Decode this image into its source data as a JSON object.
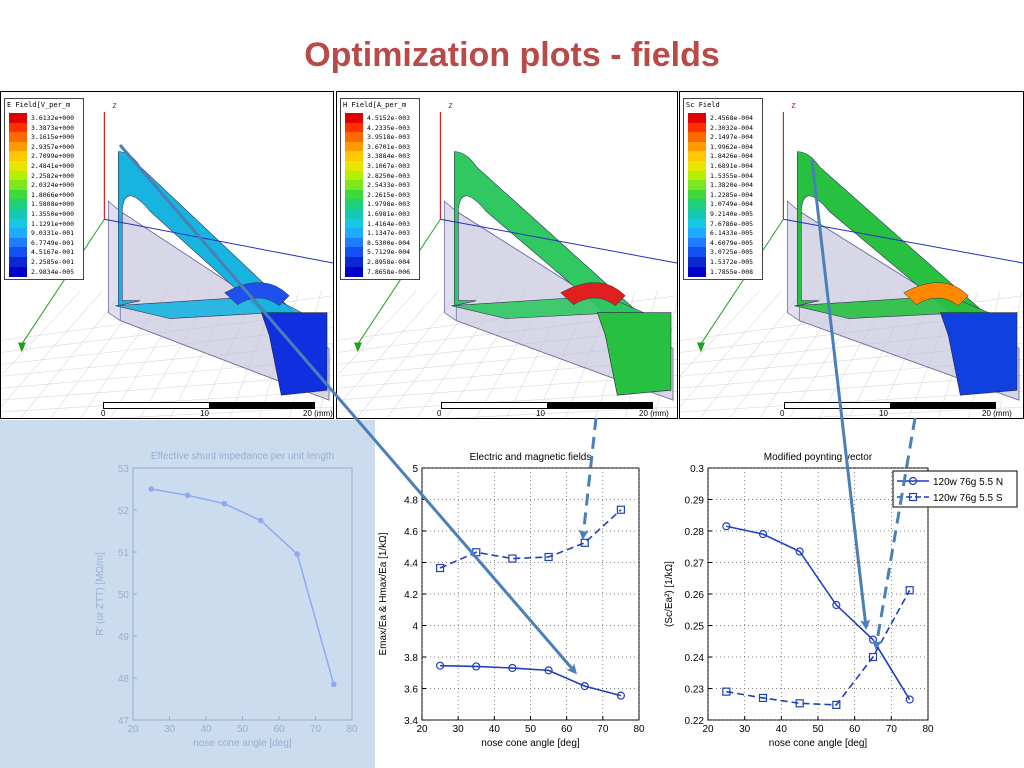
{
  "slide": {
    "title": "Optimization plots - fields"
  },
  "sim_panels": [
    {
      "name": "e-field",
      "legend_title": "E Field[V_per_m",
      "values": [
        "3.6132e+000",
        "3.3873e+000",
        "3.1615e+000",
        "2.9357e+000",
        "2.7099e+000",
        "2.4841e+000",
        "2.2582e+000",
        "2.0324e+000",
        "1.8066e+000",
        "1.5808e+000",
        "1.3550e+000",
        "1.1291e+000",
        "9.0331e-001",
        "6.7749e-001",
        "4.5167e-001",
        "2.2585e-001",
        "2.9834e-005"
      ],
      "axis_label": "z",
      "scale_labels": [
        "0",
        "10",
        "20 (mm)"
      ]
    },
    {
      "name": "h-field",
      "legend_title": "H Field[A_per_m",
      "values": [
        "4.5152e-003",
        "4.2335e-003",
        "3.9518e-003",
        "3.6701e-003",
        "3.3884e-003",
        "3.1067e-003",
        "2.8250e-003",
        "2.5433e-003",
        "2.2615e-003",
        "1.9798e-003",
        "1.6981e-003",
        "1.4164e-003",
        "1.1347e-003",
        "8.5300e-004",
        "5.7129e-004",
        "2.8958e-004",
        "7.8658e-006"
      ],
      "axis_label": "z",
      "scale_labels": [
        "0",
        "10",
        "20 (mm)"
      ]
    },
    {
      "name": "sc-field",
      "legend_title": "Sc Field",
      "values": [
        "2.4568e-004",
        "2.3032e-004",
        "2.1497e-004",
        "1.9962e-004",
        "1.8426e-004",
        "1.6891e-004",
        "1.5355e-004",
        "1.3820e-004",
        "1.2285e-004",
        "1.0749e-004",
        "9.2140e-005",
        "7.6786e-005",
        "6.1433e-005",
        "4.6079e-005",
        "3.0725e-005",
        "1.5372e-005",
        "1.7855e-008"
      ],
      "axis_label": "z",
      "scale_labels": [
        "0",
        "10",
        "20 (mm)"
      ]
    }
  ],
  "colors": {
    "title": "#b94a48",
    "series": "#1f3fbf",
    "arrow": "#4a7fb8",
    "shunt_line": "#8fa9f0",
    "shunt_bg": "#cbdcef"
  },
  "chart_data": [
    {
      "type": "line",
      "title": "Effective shunt impedance per unit length",
      "xlabel": "nose cone angle [deg]",
      "ylabel": "R' (or ZTT) [MΩ/m]",
      "xlim": [
        20,
        80
      ],
      "ylim": [
        47,
        53
      ],
      "xticks": [
        "20",
        "30",
        "40",
        "50",
        "60",
        "70",
        "80"
      ],
      "yticks": [
        "47",
        "48",
        "49",
        "50",
        "51",
        "52",
        "53"
      ],
      "grid": false,
      "x": [
        25,
        35,
        45,
        55,
        65,
        75
      ],
      "series": [
        {
          "values": [
            52.5,
            52.35,
            52.15,
            51.75,
            50.95,
            47.85
          ]
        }
      ]
    },
    {
      "type": "line",
      "title": "Electric and magnetic fields",
      "xlabel": "nose cone angle [deg]",
      "ylabel": "Emax/Ea & Hmax/Ea [1/kΩ]",
      "xlim": [
        20,
        80
      ],
      "ylim": [
        3.4,
        5
      ],
      "xticks": [
        "20",
        "30",
        "40",
        "50",
        "60",
        "70",
        "80"
      ],
      "yticks": [
        "3.4",
        "3.6",
        "3.8",
        "4",
        "4.2",
        "4.4",
        "4.6",
        "4.8",
        "5"
      ],
      "grid": true,
      "x": [
        25,
        35,
        45,
        55,
        65,
        75
      ],
      "series": [
        {
          "marker": "circle",
          "style": "solid",
          "values": [
            3.745,
            3.74,
            3.73,
            3.715,
            3.615,
            3.555
          ]
        },
        {
          "marker": "square",
          "style": "dashed",
          "values": [
            4.365,
            4.465,
            4.425,
            4.435,
            4.525,
            4.735
          ]
        }
      ]
    },
    {
      "type": "line",
      "title": "Modified poynting vector",
      "xlabel": "nose cone angle [deg]",
      "ylabel": "(Sc/Ea²) [1/kΩ]",
      "xlim": [
        20,
        80
      ],
      "ylim": [
        0.22,
        0.3
      ],
      "xticks": [
        "20",
        "30",
        "40",
        "50",
        "60",
        "70",
        "80"
      ],
      "yticks": [
        "0.22",
        "0.23",
        "0.24",
        "0.25",
        "0.26",
        "0.27",
        "0.28",
        "0.29",
        "0.3"
      ],
      "grid": true,
      "legend_position": "top-right",
      "x": [
        25,
        35,
        45,
        55,
        65,
        75
      ],
      "series": [
        {
          "name": "120w 76g 5.5 N",
          "marker": "circle",
          "style": "solid",
          "values": [
            0.2815,
            0.279,
            0.2735,
            0.2565,
            0.2455,
            0.2265
          ]
        },
        {
          "name": "120w 76g 5.5 S",
          "marker": "square",
          "style": "dashed",
          "values": [
            0.229,
            0.227,
            0.2253,
            0.2248,
            0.24,
            0.2612
          ]
        }
      ]
    }
  ]
}
